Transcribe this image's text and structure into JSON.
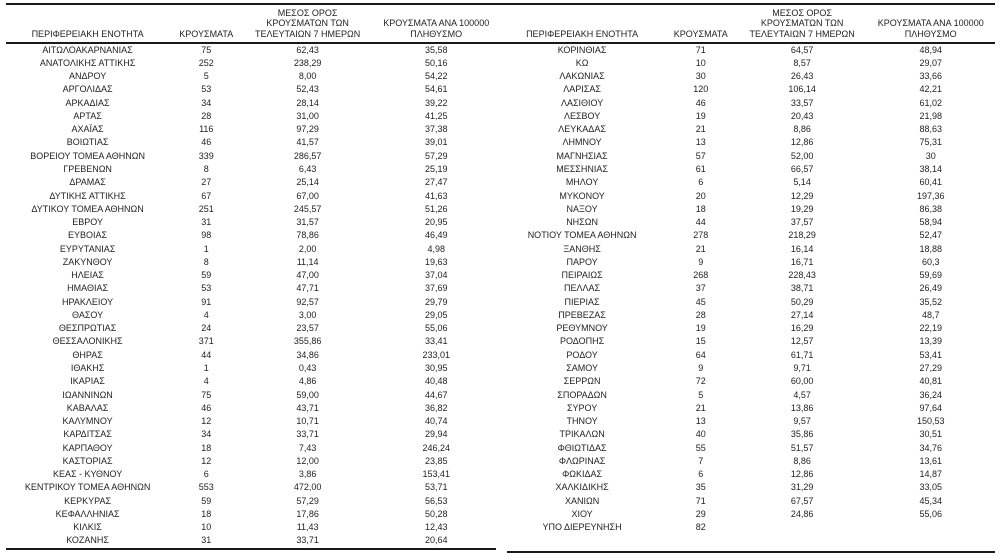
{
  "colors": {
    "background": "#ffffff",
    "text": "#1f1f1f",
    "rule": "#1a1a1a"
  },
  "columns": {
    "region": "ΠΕΡΙΦΕΡΕΙΑΚΗ ΕΝΟΤΗΤΑ",
    "cases": "ΚΡΟΥΣΜΑΤΑ",
    "avg7_lines": [
      "ΜΕΣΟΣ ΟΡΟΣ",
      "ΚΡΟΥΣΜΑΤΩΝ ΤΩΝ",
      "ΤΕΛΕΥΤΑΙΩΝ 7 ΗΜΕΡΩΝ"
    ],
    "per100k_lines": [
      "ΚΡΟΥΣΜΑΤΑ ΑΝΑ 100000",
      "ΠΛΗΘΥΣΜΟ"
    ]
  },
  "left_table": {
    "rows": [
      [
        "ΑΙΤΩΛΟΑΚΑΡΝΑΝΙΑΣ",
        "75",
        "62,43",
        "35,58"
      ],
      [
        "ΑΝΑΤΟΛΙΚΗΣ ΑΤΤΙΚΗΣ",
        "252",
        "238,29",
        "50,16"
      ],
      [
        "ΑΝΔΡΟΥ",
        "5",
        "8,00",
        "54,22"
      ],
      [
        "ΑΡΓΟΛΙΔΑΣ",
        "53",
        "52,43",
        "54,61"
      ],
      [
        "ΑΡΚΑΔΙΑΣ",
        "34",
        "28,14",
        "39,22"
      ],
      [
        "ΑΡΤΑΣ",
        "28",
        "31,00",
        "41,25"
      ],
      [
        "ΑΧΑΪΑΣ",
        "116",
        "97,29",
        "37,38"
      ],
      [
        "ΒΟΙΩΤΙΑΣ",
        "46",
        "41,57",
        "39,01"
      ],
      [
        "ΒΟΡΕΙΟΥ ΤΟΜΕΑ ΑΘΗΝΩΝ",
        "339",
        "286,57",
        "57,29"
      ],
      [
        "ΓΡΕΒΕΝΩΝ",
        "8",
        "6,43",
        "25,19"
      ],
      [
        "ΔΡΑΜΑΣ",
        "27",
        "25,14",
        "27,47"
      ],
      [
        "ΔΥΤΙΚΗΣ ΑΤΤΙΚΗΣ",
        "67",
        "67,00",
        "41,63"
      ],
      [
        "ΔΥΤΙΚΟΥ ΤΟΜΕΑ ΑΘΗΝΩΝ",
        "251",
        "245,57",
        "51,26"
      ],
      [
        "ΕΒΡΟΥ",
        "31",
        "31,57",
        "20,95"
      ],
      [
        "ΕΥΒΟΙΑΣ",
        "98",
        "78,86",
        "46,49"
      ],
      [
        "ΕΥΡΥΤΑΝΙΑΣ",
        "1",
        "2,00",
        "4,98"
      ],
      [
        "ΖΑΚΥΝΘΟΥ",
        "8",
        "11,14",
        "19,63"
      ],
      [
        "ΗΛΕΙΑΣ",
        "59",
        "47,00",
        "37,04"
      ],
      [
        "ΗΜΑΘΙΑΣ",
        "53",
        "47,71",
        "37,69"
      ],
      [
        "ΗΡΑΚΛΕΙΟΥ",
        "91",
        "92,57",
        "29,79"
      ],
      [
        "ΘΑΣΟΥ",
        "4",
        "3,00",
        "29,05"
      ],
      [
        "ΘΕΣΠΡΩΤΙΑΣ",
        "24",
        "23,57",
        "55,06"
      ],
      [
        "ΘΕΣΣΑΛΟΝΙΚΗΣ",
        "371",
        "355,86",
        "33,41"
      ],
      [
        "ΘΗΡΑΣ",
        "44",
        "34,86",
        "233,01"
      ],
      [
        "ΙΘΑΚΗΣ",
        "1",
        "0,43",
        "30,95"
      ],
      [
        "ΙΚΑΡΙΑΣ",
        "4",
        "4,86",
        "40,48"
      ],
      [
        "ΙΩΑΝΝΙΝΩΝ",
        "75",
        "59,00",
        "44,67"
      ],
      [
        "ΚΑΒΑΛΑΣ",
        "46",
        "43,71",
        "36,82"
      ],
      [
        "ΚΑΛΥΜΝΟΥ",
        "12",
        "10,71",
        "40,74"
      ],
      [
        "ΚΑΡΔΙΤΣΑΣ",
        "34",
        "33,71",
        "29,94"
      ],
      [
        "ΚΑΡΠΑΘΟΥ",
        "18",
        "7,43",
        "246,24"
      ],
      [
        "ΚΑΣΤΟΡΙΑΣ",
        "12",
        "12,00",
        "23,85"
      ],
      [
        "ΚΕΑΣ - ΚΥΘΝΟΥ",
        "6",
        "3,86",
        "153,41"
      ],
      [
        "ΚΕΝΤΡΙΚΟΥ ΤΟΜΕΑ ΑΘΗΝΩΝ",
        "553",
        "472,00",
        "53,71"
      ],
      [
        "ΚΕΡΚΥΡΑΣ",
        "59",
        "57,29",
        "56,53"
      ],
      [
        "ΚΕΦΑΛΛΗΝΙΑΣ",
        "18",
        "17,86",
        "50,28"
      ],
      [
        "ΚΙΛΚΙΣ",
        "10",
        "11,43",
        "12,43"
      ],
      [
        "ΚΟΖΑΝΗΣ",
        "31",
        "33,71",
        "20,64"
      ]
    ]
  },
  "right_table": {
    "rows": [
      [
        "ΚΟΡΙΝΘΙΑΣ",
        "71",
        "64,57",
        "48,94"
      ],
      [
        "ΚΩ",
        "10",
        "8,57",
        "29,07"
      ],
      [
        "ΛΑΚΩΝΙΑΣ",
        "30",
        "26,43",
        "33,66"
      ],
      [
        "ΛΑΡΙΣΑΣ",
        "120",
        "106,14",
        "42,21"
      ],
      [
        "ΛΑΣΙΘΙΟΥ",
        "46",
        "33,57",
        "61,02"
      ],
      [
        "ΛΕΣΒΟΥ",
        "19",
        "20,43",
        "21,98"
      ],
      [
        "ΛΕΥΚΑΔΑΣ",
        "21",
        "8,86",
        "88,63"
      ],
      [
        "ΛΗΜΝΟΥ",
        "13",
        "12,86",
        "75,31"
      ],
      [
        "ΜΑΓΝΗΣΙΑΣ",
        "57",
        "52,00",
        "30"
      ],
      [
        "ΜΕΣΣΗΝΙΑΣ",
        "61",
        "66,57",
        "38,14"
      ],
      [
        "ΜΗΛΟΥ",
        "6",
        "5,14",
        "60,41"
      ],
      [
        "ΜΥΚΟΝΟΥ",
        "20",
        "12,29",
        "197,36"
      ],
      [
        "ΝΑΞΟΥ",
        "18",
        "19,29",
        "86,38"
      ],
      [
        "ΝΗΣΩΝ",
        "44",
        "37,57",
        "58,94"
      ],
      [
        "ΝΟΤΙΟΥ ΤΟΜΕΑ ΑΘΗΝΩΝ",
        "278",
        "218,29",
        "52,47"
      ],
      [
        "ΞΑΝΘΗΣ",
        "21",
        "16,14",
        "18,88"
      ],
      [
        "ΠΑΡΟΥ",
        "9",
        "16,71",
        "60,3"
      ],
      [
        "ΠΕΙΡΑΙΩΣ",
        "268",
        "228,43",
        "59,69"
      ],
      [
        "ΠΕΛΛΑΣ",
        "37",
        "38,71",
        "26,49"
      ],
      [
        "ΠΙΕΡΙΑΣ",
        "45",
        "50,29",
        "35,52"
      ],
      [
        "ΠΡΕΒΕΖΑΣ",
        "28",
        "27,14",
        "48,7"
      ],
      [
        "ΡΕΘΥΜΝΟΥ",
        "19",
        "16,29",
        "22,19"
      ],
      [
        "ΡΟΔΟΠΗΣ",
        "15",
        "12,57",
        "13,39"
      ],
      [
        "ΡΟΔΟΥ",
        "64",
        "61,71",
        "53,41"
      ],
      [
        "ΣΑΜΟΥ",
        "9",
        "9,71",
        "27,29"
      ],
      [
        "ΣΕΡΡΩΝ",
        "72",
        "60,00",
        "40,81"
      ],
      [
        "ΣΠΟΡΑΔΩΝ",
        "5",
        "4,57",
        "36,24"
      ],
      [
        "ΣΥΡΟΥ",
        "21",
        "13,86",
        "97,64"
      ],
      [
        "ΤΗΝΟΥ",
        "13",
        "9,57",
        "150,53"
      ],
      [
        "ΤΡΙΚΑΛΩΝ",
        "40",
        "35,86",
        "30,51"
      ],
      [
        "ΦΘΙΩΤΙΔΑΣ",
        "55",
        "51,57",
        "34,76"
      ],
      [
        "ΦΛΩΡΙΝΑΣ",
        "7",
        "8,86",
        "13,61"
      ],
      [
        "ΦΩΚΙΔΑΣ",
        "6",
        "12,86",
        "14,87"
      ],
      [
        "ΧΑΛΚΙΔΙΚΗΣ",
        "35",
        "31,29",
        "33,05"
      ],
      [
        "ΧΑΝΙΩΝ",
        "71",
        "67,57",
        "45,34"
      ],
      [
        "ΧΙΟΥ",
        "29",
        "24,86",
        "55,06"
      ],
      [
        "ΥΠΟ ΔΙΕΡΕΥΝΗΣΗ",
        "82",
        "",
        ""
      ]
    ]
  }
}
